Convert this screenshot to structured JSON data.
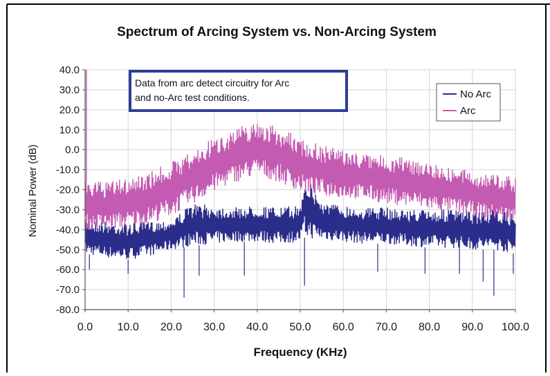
{
  "chart_data": {
    "type": "line",
    "title": "Spectrum of Arcing System vs. Non-Arcing System",
    "xlabel": "Frequency (KHz)",
    "ylabel": "Nominal Power (dB)",
    "xlim": [
      0,
      100
    ],
    "ylim": [
      -80,
      40
    ],
    "x_ticks": [
      "0.0",
      "10.0",
      "20.0",
      "30.0",
      "40.0",
      "50.0",
      "60.0",
      "70.0",
      "80.0",
      "90.0",
      "100.0"
    ],
    "y_ticks": [
      "40.0",
      "30.0",
      "20.0",
      "10.0",
      "0.0",
      "-10.0",
      "-20.0",
      "-30.0",
      "-40.0",
      "-50.0",
      "-60.0",
      "-70.0",
      "-80.0"
    ],
    "grid": true,
    "legend_position": "top-right",
    "annotation": {
      "line1": "Data from arc detect circuitry for Arc",
      "line2": "and no-Arc test conditions."
    },
    "series": [
      {
        "name": "No Arc",
        "color": "#2b2d8a",
        "x": [
          0,
          5,
          10,
          15,
          20,
          25,
          30,
          35,
          40,
          45,
          50,
          51,
          55,
          60,
          65,
          70,
          75,
          80,
          85,
          90,
          95,
          100
        ],
        "upper": [
          -35,
          -36,
          -37,
          -36,
          -35,
          -27,
          -28,
          -29,
          -28,
          -29,
          -28,
          -12,
          -26,
          -28,
          -29,
          -29,
          -30,
          -30,
          -30,
          -31,
          -30,
          -32
        ],
        "lower": [
          -52,
          -54,
          -55,
          -53,
          -50,
          -48,
          -47,
          -46,
          -46,
          -47,
          -46,
          -44,
          -45,
          -46,
          -47,
          -47,
          -48,
          -49,
          -49,
          -50,
          -50,
          -52
        ],
        "dips_x": [
          1,
          10,
          23,
          26.5,
          37,
          51,
          68,
          79,
          87,
          92.5,
          95,
          99.5
        ],
        "dips_y": [
          -60,
          -62,
          -74,
          -63,
          -63,
          -68,
          -61,
          -62,
          -62,
          -66,
          -73,
          -62
        ]
      },
      {
        "name": "Arc",
        "color": "#c45bb2",
        "x": [
          0,
          5,
          10,
          15,
          20,
          25,
          30,
          35,
          40,
          45,
          50,
          55,
          60,
          65,
          70,
          75,
          80,
          85,
          90,
          95,
          100
        ],
        "upper": [
          -16,
          -16,
          -14,
          -11,
          -6,
          -1,
          6,
          11,
          14,
          11,
          6,
          2,
          0,
          -2,
          -3,
          -4,
          -6,
          -9,
          -11,
          -12,
          -14
        ],
        "lower": [
          -40,
          -40,
          -39,
          -37,
          -33,
          -27,
          -21,
          -16,
          -13,
          -16,
          -21,
          -23,
          -24,
          -25,
          -27,
          -28,
          -30,
          -31,
          -33,
          -35,
          -36
        ],
        "spike_x": [
          0.3
        ],
        "spike_y": [
          40
        ]
      }
    ]
  }
}
